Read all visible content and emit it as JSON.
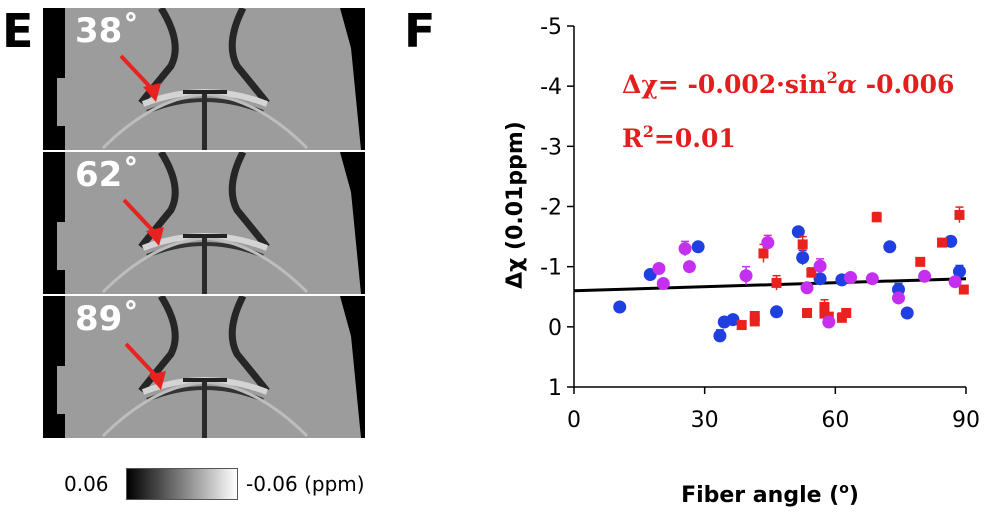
{
  "figure": {
    "panel_e": {
      "letter": "E",
      "images": [
        {
          "angle_label": "38˚"
        },
        {
          "angle_label": "62˚"
        },
        {
          "angle_label": "89˚"
        }
      ],
      "colorbar": {
        "min_label": "0.06",
        "max_label": "-0.06 (ppm)"
      },
      "colors": {
        "arrow": "#e8231f",
        "label": "#ffffff"
      }
    },
    "panel_f": {
      "letter": "F"
    }
  },
  "chart_data": {
    "type": "scatter",
    "title": "",
    "xlabel": "Fiber angle (o)",
    "xlabel_parts": {
      "main": "Fiber angle (",
      "sup": "o",
      "end": ")"
    },
    "ylabel": "Δχ (0.01ppm)",
    "xlim": [
      0,
      90
    ],
    "ylim": [
      1,
      -5
    ],
    "y_inverted": true,
    "xticks": [
      0,
      30,
      60,
      90
    ],
    "yticks": [
      -5,
      -4,
      -3,
      -2,
      -1,
      0,
      1
    ],
    "xtick_labels": [
      "0",
      "30",
      "60",
      "90"
    ],
    "ytick_labels": [
      "-5",
      "-4",
      "-3",
      "-2",
      "-1",
      "0",
      "1"
    ],
    "annotations": {
      "equation_prefix": "Δχ=  -0.002·sin",
      "equation_sup": "2",
      "equation_alpha": "α",
      "equation_suffix": " -0.006",
      "r2_prefix": "R",
      "r2_sup": "2",
      "r2_suffix": "=0.01",
      "color": "#e21e1e"
    },
    "fit_line": {
      "x": [
        0,
        90
      ],
      "y": [
        -0.6,
        -0.8
      ],
      "color": "#000000"
    },
    "series": [
      {
        "name": "blue",
        "color": "#1f3fe0",
        "points": [
          [
            10.5,
            -0.33,
            0.05
          ],
          [
            17.5,
            -0.87,
            0.06
          ],
          [
            28.5,
            -1.33,
            0.05
          ],
          [
            33.5,
            0.15,
            0.1
          ],
          [
            34.5,
            -0.08,
            0.06
          ],
          [
            36.5,
            -0.12,
            0.05
          ],
          [
            46.5,
            -0.25,
            0.05
          ],
          [
            51.5,
            -1.58,
            0.06
          ],
          [
            52.5,
            -1.15,
            0.12
          ],
          [
            56.5,
            -0.8,
            0.05
          ],
          [
            61.5,
            -0.78,
            0.06
          ],
          [
            72.5,
            -1.33,
            0.05
          ],
          [
            74.5,
            -0.62,
            0.1
          ],
          [
            76.5,
            -0.23,
            0.07
          ],
          [
            86.5,
            -1.42,
            0.08
          ],
          [
            88.5,
            -0.92,
            0.1
          ]
        ]
      },
      {
        "name": "red",
        "color": "#e8231f",
        "points": [
          [
            38.5,
            -0.03,
            0.05
          ],
          [
            41.5,
            -0.09,
            0.05
          ],
          [
            41.5,
            -0.18,
            0.07
          ],
          [
            43.5,
            -1.22,
            0.15
          ],
          [
            46.5,
            -0.73,
            0.12
          ],
          [
            52.5,
            -1.37,
            0.13
          ],
          [
            53.5,
            -0.23,
            0.05
          ],
          [
            54.5,
            -0.9,
            0.08
          ],
          [
            57.5,
            -0.33,
            0.12
          ],
          [
            57.5,
            -0.22,
            0.05
          ],
          [
            58.5,
            -0.17,
            0.06
          ],
          [
            61.5,
            -0.15,
            0.08
          ],
          [
            62.5,
            -0.23,
            0.06
          ],
          [
            69.5,
            -1.82,
            0.08
          ],
          [
            79.5,
            -1.08,
            0.06
          ],
          [
            84.5,
            -1.4,
            0.06
          ],
          [
            88.5,
            -1.86,
            0.13
          ],
          [
            89.5,
            -0.62,
            0.06
          ]
        ]
      },
      {
        "name": "magenta",
        "color": "#c530f0",
        "points": [
          [
            19.5,
            -0.97,
            0.06
          ],
          [
            20.5,
            -0.72,
            0.06
          ],
          [
            25.5,
            -1.3,
            0.12
          ],
          [
            26.5,
            -1.0,
            0.06
          ],
          [
            39.5,
            -0.85,
            0.15
          ],
          [
            44.5,
            -1.4,
            0.12
          ],
          [
            53.5,
            -0.65,
            0.06
          ],
          [
            56.5,
            -1.01,
            0.12
          ],
          [
            58.5,
            -0.08,
            0.06
          ],
          [
            63.5,
            -0.82,
            0.05
          ],
          [
            68.5,
            -0.8,
            0.06
          ],
          [
            74.5,
            -0.48,
            0.06
          ],
          [
            80.5,
            -0.84,
            0.06
          ],
          [
            87.5,
            -0.75,
            0.05
          ]
        ]
      }
    ]
  }
}
